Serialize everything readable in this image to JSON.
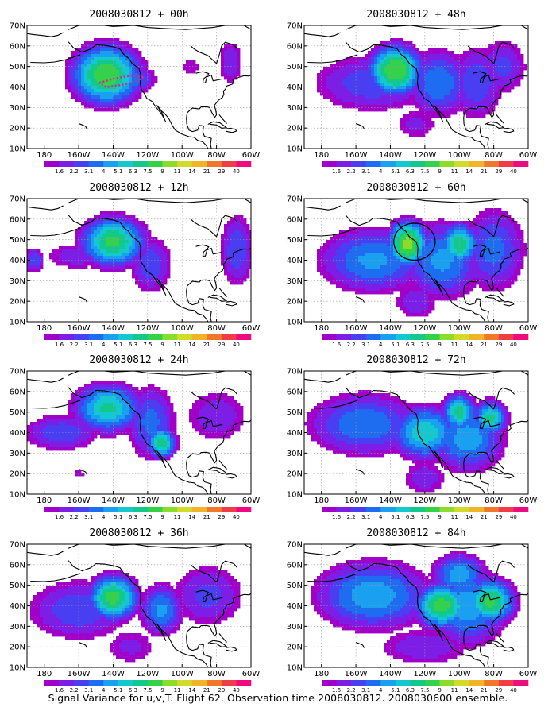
{
  "caption": "Signal Variance for u,v,T. Flight 62. Observation time 2008030812. 2008030600 ensemble.",
  "colors": {
    "levels": [
      "#a000c8",
      "#7c1ee6",
      "#4a3ef2",
      "#1e6cf0",
      "#1aa0f0",
      "#14c8d0",
      "#12c88a",
      "#34d24a",
      "#8cdc2a",
      "#d2dc28",
      "#f0b428",
      "#f07828",
      "#f03c46",
      "#f00a82"
    ],
    "coast": "#000000",
    "grid": "#999999",
    "track": "#dd2299"
  },
  "chart_data": [
    {
      "type": "heatmap",
      "title": "2008030812 + 00h",
      "lead_hours": 0,
      "xlim": [
        -190,
        -60
      ],
      "ylim": [
        10,
        70
      ],
      "xticks": [
        "180",
        "160W",
        "140W",
        "120W",
        "100W",
        "80W",
        "60W"
      ],
      "yticks": [
        "10N",
        "20N",
        "30N",
        "40N",
        "50N",
        "60N",
        "70N"
      ],
      "colorbar": [
        "1.6",
        "2.2",
        "3.1",
        "4",
        "5.1",
        "6.3",
        "7.5",
        "9",
        "11",
        "14",
        "21",
        "29",
        "40"
      ],
      "features": [
        {
          "lon": -144,
          "lat": 46,
          "peak": 10.5,
          "rx": 18,
          "ry": 13
        },
        {
          "lon": -130,
          "lat": 44,
          "peak": 5,
          "rx": 14,
          "ry": 7
        },
        {
          "lon": -95,
          "lat": 50,
          "peak": 2,
          "rx": 9,
          "ry": 6
        },
        {
          "lon": -72,
          "lat": 52,
          "peak": 3,
          "rx": 8,
          "ry": 12
        }
      ]
    },
    {
      "type": "heatmap",
      "title": "2008030812 + 48h",
      "lead_hours": 48,
      "xlim": [
        -190,
        -60
      ],
      "ylim": [
        10,
        70
      ],
      "xticks": [
        "180",
        "160W",
        "140W",
        "120W",
        "100W",
        "80W",
        "60W"
      ],
      "yticks": [
        "10N",
        "20N",
        "30N",
        "40N",
        "50N",
        "60N",
        "70N"
      ],
      "colorbar": [
        "1.6",
        "2.2",
        "3.1",
        "4",
        "5.1",
        "6.3",
        "7.5",
        "9",
        "11",
        "14",
        "21",
        "29",
        "40"
      ],
      "features": [
        {
          "lon": -137,
          "lat": 48,
          "peak": 11,
          "rx": 14,
          "ry": 11
        },
        {
          "lon": -150,
          "lat": 42,
          "peak": 4,
          "rx": 35,
          "ry": 14
        },
        {
          "lon": -112,
          "lat": 42,
          "peak": 5,
          "rx": 18,
          "ry": 16
        },
        {
          "lon": -90,
          "lat": 42,
          "peak": 4,
          "rx": 16,
          "ry": 18
        },
        {
          "lon": -75,
          "lat": 50,
          "peak": 3.5,
          "rx": 15,
          "ry": 14
        },
        {
          "lon": -125,
          "lat": 22,
          "peak": 2.5,
          "rx": 15,
          "ry": 9
        }
      ]
    },
    {
      "type": "heatmap",
      "title": "2008030812 + 12h",
      "lead_hours": 12,
      "xlim": [
        -190,
        -60
      ],
      "ylim": [
        10,
        70
      ],
      "xticks": [
        "180",
        "160W",
        "140W",
        "120W",
        "100W",
        "80W",
        "60W"
      ],
      "yticks": [
        "10N",
        "20N",
        "30N",
        "40N",
        "50N",
        "60N",
        "70N"
      ],
      "colorbar": [
        "1.6",
        "2.2",
        "3.1",
        "4",
        "5.1",
        "6.3",
        "7.5",
        "9",
        "11",
        "14",
        "21",
        "29",
        "40"
      ],
      "features": [
        {
          "lon": -140,
          "lat": 49,
          "peak": 9.5,
          "rx": 17,
          "ry": 11
        },
        {
          "lon": -160,
          "lat": 42,
          "peak": 3,
          "rx": 22,
          "ry": 7
        },
        {
          "lon": -118,
          "lat": 38,
          "peak": 4,
          "rx": 12,
          "ry": 14
        },
        {
          "lon": -68,
          "lat": 45,
          "peak": 4,
          "rx": 10,
          "ry": 18
        },
        {
          "lon": -186,
          "lat": 40,
          "peak": 4,
          "rx": 6,
          "ry": 6
        }
      ]
    },
    {
      "type": "heatmap",
      "title": "2008030812 + 60h",
      "lead_hours": 60,
      "xlim": [
        -190,
        -60
      ],
      "ylim": [
        10,
        70
      ],
      "xticks": [
        "180",
        "160W",
        "140W",
        "120W",
        "100W",
        "80W",
        "60W"
      ],
      "yticks": [
        "10N",
        "20N",
        "30N",
        "40N",
        "50N",
        "60N",
        "70N"
      ],
      "colorbar": [
        "1.6",
        "2.2",
        "3.1",
        "4",
        "5.1",
        "6.3",
        "7.5",
        "9",
        "11",
        "14",
        "21",
        "29",
        "40"
      ],
      "features": [
        {
          "lon": -130,
          "lat": 48,
          "peak": 12,
          "rx": 10,
          "ry": 10
        },
        {
          "lon": -100,
          "lat": 48,
          "peak": 9,
          "rx": 10,
          "ry": 9
        },
        {
          "lon": -150,
          "lat": 40,
          "peak": 5.5,
          "rx": 30,
          "ry": 15
        },
        {
          "lon": -110,
          "lat": 40,
          "peak": 5.5,
          "rx": 22,
          "ry": 18
        },
        {
          "lon": -80,
          "lat": 45,
          "peak": 4.5,
          "rx": 18,
          "ry": 20
        },
        {
          "lon": -125,
          "lat": 20,
          "peak": 3,
          "rx": 14,
          "ry": 10
        }
      ]
    },
    {
      "type": "heatmap",
      "title": "2008030812 + 24h",
      "lead_hours": 24,
      "xlim": [
        -190,
        -60
      ],
      "ylim": [
        10,
        70
      ],
      "xticks": [
        "180",
        "160W",
        "140W",
        "120W",
        "100W",
        "80W",
        "60W"
      ],
      "yticks": [
        "10N",
        "20N",
        "30N",
        "40N",
        "50N",
        "60N",
        "70N"
      ],
      "colorbar": [
        "1.6",
        "2.2",
        "3.1",
        "4",
        "5.1",
        "6.3",
        "7.5",
        "9",
        "11",
        "14",
        "21",
        "29",
        "40"
      ],
      "features": [
        {
          "lon": -143,
          "lat": 52,
          "peak": 8,
          "rx": 18,
          "ry": 11
        },
        {
          "lon": -112,
          "lat": 35,
          "peak": 8.5,
          "rx": 8,
          "ry": 7
        },
        {
          "lon": -170,
          "lat": 40,
          "peak": 4,
          "rx": 22,
          "ry": 9
        },
        {
          "lon": -118,
          "lat": 45,
          "peak": 4.5,
          "rx": 14,
          "ry": 18
        },
        {
          "lon": -80,
          "lat": 48,
          "peak": 3,
          "rx": 20,
          "ry": 14
        },
        {
          "lon": -160,
          "lat": 20,
          "peak": 2,
          "rx": 5,
          "ry": 4
        }
      ]
    },
    {
      "type": "heatmap",
      "title": "2008030812 + 72h",
      "lead_hours": 72,
      "xlim": [
        -190,
        -60
      ],
      "ylim": [
        10,
        70
      ],
      "xticks": [
        "180",
        "160W",
        "140W",
        "120W",
        "100W",
        "80W",
        "60W"
      ],
      "yticks": [
        "10N",
        "20N",
        "30N",
        "40N",
        "50N",
        "60N",
        "70N"
      ],
      "colorbar": [
        "1.6",
        "2.2",
        "3.1",
        "4",
        "5.1",
        "6.3",
        "7.5",
        "9",
        "11",
        "14",
        "21",
        "29",
        "40"
      ],
      "features": [
        {
          "lon": -100,
          "lat": 50,
          "peak": 8.5,
          "rx": 9,
          "ry": 8
        },
        {
          "lon": -82,
          "lat": 47,
          "peak": 8,
          "rx": 9,
          "ry": 8
        },
        {
          "lon": -120,
          "lat": 40,
          "peak": 7.5,
          "rx": 18,
          "ry": 12
        },
        {
          "lon": -155,
          "lat": 44,
          "peak": 5,
          "rx": 32,
          "ry": 15
        },
        {
          "lon": -95,
          "lat": 37,
          "peak": 6,
          "rx": 20,
          "ry": 15
        },
        {
          "lon": -120,
          "lat": 18,
          "peak": 3,
          "rx": 14,
          "ry": 9
        }
      ]
    },
    {
      "type": "heatmap",
      "title": "2008030812 + 36h",
      "lead_hours": 36,
      "xlim": [
        -190,
        -60
      ],
      "ylim": [
        10,
        70
      ],
      "xticks": [
        "180",
        "160W",
        "140W",
        "120W",
        "100W",
        "80W",
        "60W"
      ],
      "yticks": [
        "10N",
        "20N",
        "30N",
        "40N",
        "50N",
        "60N",
        "70N"
      ],
      "colorbar": [
        "1.6",
        "2.2",
        "3.1",
        "4",
        "5.1",
        "6.3",
        "7.5",
        "9",
        "11",
        "14",
        "21",
        "29",
        "40"
      ],
      "features": [
        {
          "lon": -140,
          "lat": 44,
          "peak": 10,
          "rx": 13,
          "ry": 10
        },
        {
          "lon": -112,
          "lat": 38,
          "peak": 5.5,
          "rx": 12,
          "ry": 12
        },
        {
          "lon": -160,
          "lat": 38,
          "peak": 4,
          "rx": 30,
          "ry": 15
        },
        {
          "lon": -85,
          "lat": 45,
          "peak": 3.5,
          "rx": 22,
          "ry": 16
        },
        {
          "lon": -130,
          "lat": 20,
          "peak": 2.5,
          "rx": 18,
          "ry": 10
        }
      ]
    },
    {
      "type": "heatmap",
      "title": "2008030812 + 84h",
      "lead_hours": 84,
      "xlim": [
        -190,
        -60
      ],
      "ylim": [
        10,
        70
      ],
      "xticks": [
        "180",
        "160W",
        "140W",
        "120W",
        "100W",
        "80W",
        "60W"
      ],
      "yticks": [
        "10N",
        "20N",
        "30N",
        "40N",
        "50N",
        "60N",
        "70N"
      ],
      "colorbar": [
        "1.6",
        "2.2",
        "3.1",
        "4",
        "5.1",
        "6.3",
        "7.5",
        "9",
        "11",
        "14",
        "21",
        "29",
        "40"
      ],
      "features": [
        {
          "lon": -110,
          "lat": 40,
          "peak": 10,
          "rx": 14,
          "ry": 10
        },
        {
          "lon": -82,
          "lat": 42,
          "peak": 9.5,
          "rx": 13,
          "ry": 10
        },
        {
          "lon": -100,
          "lat": 55,
          "peak": 6,
          "rx": 15,
          "ry": 10
        },
        {
          "lon": -150,
          "lat": 45,
          "peak": 6,
          "rx": 32,
          "ry": 16
        },
        {
          "lon": -95,
          "lat": 40,
          "peak": 6,
          "rx": 22,
          "ry": 18
        },
        {
          "lon": -120,
          "lat": 20,
          "peak": 3,
          "rx": 30,
          "ry": 10
        }
      ]
    }
  ]
}
